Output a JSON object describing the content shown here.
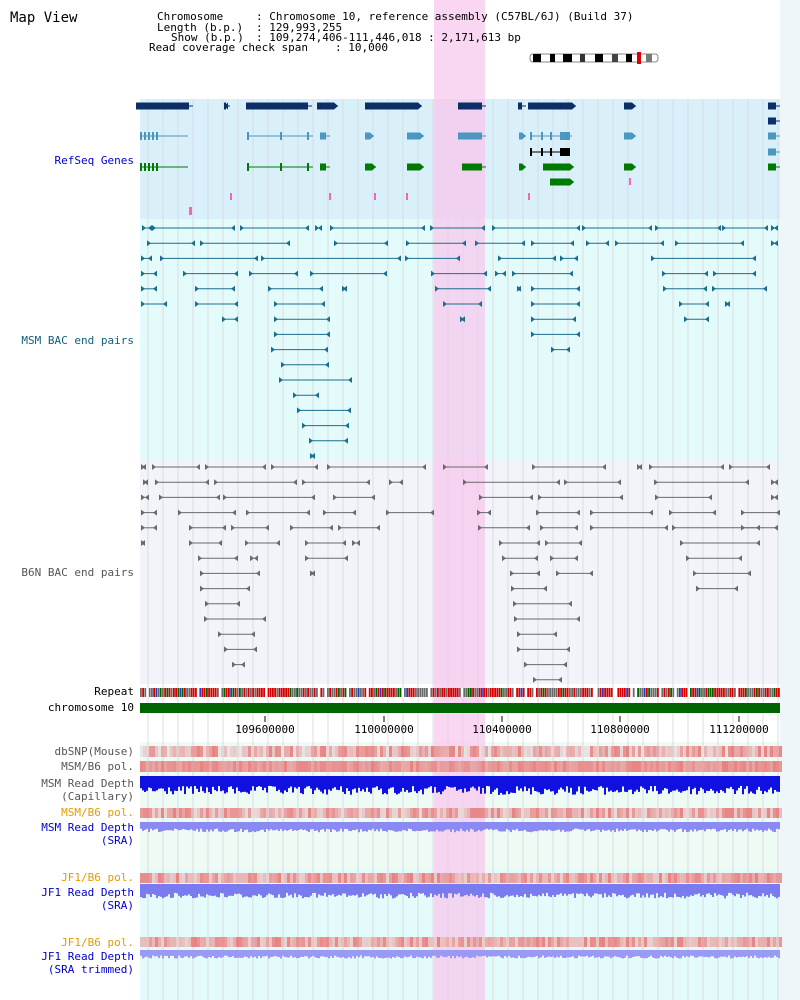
{
  "window_title": "Map View",
  "info": {
    "chromosome_key": "Chromosome",
    "chromosome_val": ": Chromosome 10, reference assembly (C57BL/6J) (Build 37)",
    "length_key": "Length (b.p.)",
    "length_val": ": 129,993,255",
    "show_key": "Show (b.p.)",
    "show_val": ": 109,274,406-111,446,018 : 2,171,613 bp",
    "coverage_key": "Read coverage check span",
    "coverage_val": ": 10,000"
  },
  "tracks": {
    "refseq": "RefSeq Genes",
    "msm_bac": "MSM BAC end pairs",
    "b6n_bac": "B6N BAC end pairs",
    "repeat": "Repeat",
    "chromosome": "chromosome 10",
    "dbsnp": "dbSNP(Mouse)",
    "msm_b6_pol": "MSM/B6 pol.",
    "msm_depth_cap_1": "MSM Read Depth",
    "msm_depth_cap_2": "(Capillary)",
    "msm_b6_pol2": "MSM/B6 pol.",
    "msm_depth_sra_1": "MSM Read Depth",
    "msm_depth_sra_2": "(SRA)",
    "jf1_pol": "JF1/B6 pol.",
    "jf1_depth_1": "JF1 Read Depth",
    "jf1_depth_2": "(SRA)",
    "jf1_pol2": "JF1/B6 pol.",
    "jf1_depth_trim_1": "JF1 Read Depth",
    "jf1_depth_trim_2": "(SRA trimmed)"
  },
  "axis": {
    "ticks": [
      "109600000",
      "110000000",
      "110400000",
      "110800000",
      "111200000"
    ]
  },
  "colors": {
    "refseq_bg": "#d9effa",
    "msm_bg": "#e4fbfb",
    "b6n_bg": "#f2f4fa",
    "highlight": "#f7c8ec",
    "chromosome_bar": "#006400",
    "gene_dark": "#0b2f66",
    "gene_mid": "#4a97c0",
    "gene_green": "#007a00",
    "msm_pair": "#1a6e8e",
    "b6n_pair": "#6a6a6a",
    "depth_blue": "#1010e0",
    "depth_light_blue": "#8080f0",
    "snp_red": "#e83a3a",
    "label_blue": "#0000cc",
    "label_orange": "#e69a00",
    "label_teal": "#11607a",
    "label_gray": "#555555"
  }
}
